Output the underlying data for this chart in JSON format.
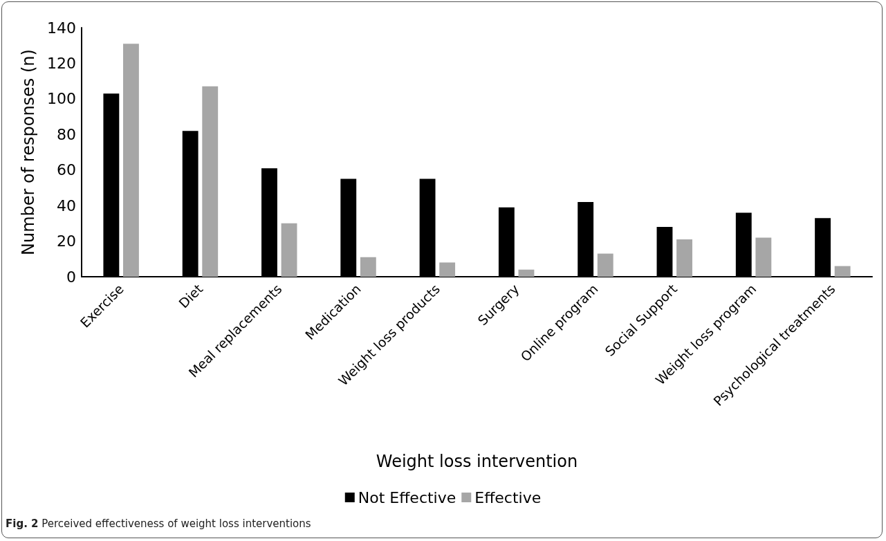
{
  "chart_data": {
    "type": "bar",
    "xlabel": "Weight loss intervention",
    "ylabel": "Number of responses (n)",
    "categories": [
      "Exercise",
      "Diet",
      "Meal replacements",
      "Medication",
      "Weight loss products",
      "Surgery",
      "Online program",
      "Social Support",
      "Weight loss program",
      "Psychological treatments"
    ],
    "series": [
      {
        "name": "Not Effective",
        "color": "#000000",
        "values": [
          103,
          82,
          61,
          55,
          55,
          39,
          42,
          28,
          36,
          33
        ]
      },
      {
        "name": "Effective",
        "color": "#a6a6a6",
        "values": [
          131,
          107,
          30,
          11,
          8,
          4,
          13,
          21,
          22,
          6
        ]
      }
    ],
    "ylim": [
      0,
      140
    ],
    "yticks": [
      0,
      20,
      40,
      60,
      80,
      100,
      120,
      140
    ],
    "grid": false,
    "legend": "bottom",
    "annotations": [
      "Fig. 2 Perceived effectiveness of weight loss interventions"
    ]
  }
}
